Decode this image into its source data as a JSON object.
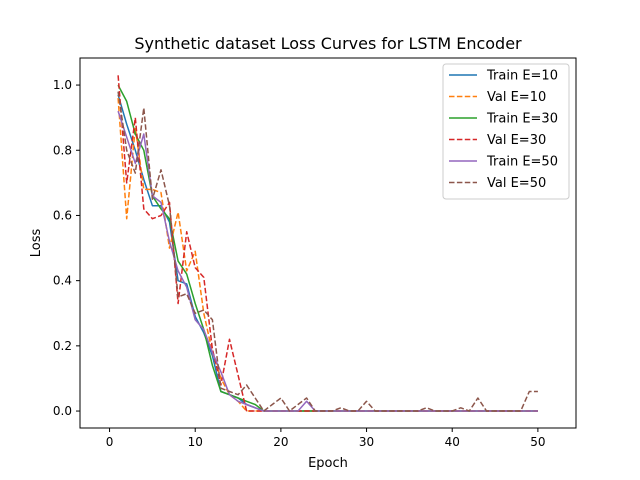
{
  "chart_data": {
    "type": "line",
    "title": "Synthetic dataset Loss Curves for LSTM Encoder",
    "xlabel": "Epoch",
    "ylabel": "Loss",
    "xlim": [
      -3.45,
      54.45
    ],
    "ylim": [
      -0.052,
      1.083
    ],
    "xticks": [
      0,
      10,
      20,
      30,
      40,
      50
    ],
    "yticks": [
      0.0,
      0.2,
      0.4,
      0.6,
      0.8,
      1.0
    ],
    "xtick_labels": [
      "0",
      "10",
      "20",
      "30",
      "40",
      "50"
    ],
    "ytick_labels": [
      "0.0",
      "0.2",
      "0.4",
      "0.6",
      "0.8",
      "1.0"
    ],
    "grid": false,
    "legend_position": "top-right",
    "series": [
      {
        "name": "Train E=10",
        "color": "#1f77b4",
        "dash": "solid",
        "x": [
          1,
          2,
          3,
          4,
          5,
          6,
          7,
          8,
          9,
          10,
          11,
          12,
          13,
          14,
          15,
          16,
          17,
          18,
          19,
          20,
          21,
          22,
          23,
          24,
          25,
          26,
          27,
          28,
          29,
          30,
          31,
          32,
          33,
          34,
          35,
          36,
          37,
          38,
          39,
          40,
          41,
          42,
          43,
          44,
          45,
          46,
          47,
          48,
          49,
          50
        ],
        "y": [
          0.97,
          0.88,
          0.8,
          0.71,
          0.63,
          0.63,
          0.58,
          0.4,
          0.39,
          0.29,
          0.24,
          0.17,
          0.06,
          0.05,
          0.04,
          0.02,
          0.01,
          0.0,
          0.0,
          0.0,
          0.0,
          0.0,
          0.0,
          0.0,
          0.0,
          0.0,
          0.0,
          0.0,
          0.0,
          0.0,
          0.0,
          0.0,
          0.0,
          0.0,
          0.0,
          0.0,
          0.0,
          0.0,
          0.0,
          0.0,
          0.0,
          0.0,
          0.0,
          0.0,
          0.0,
          0.0,
          0.0,
          0.0,
          0.0,
          0.0
        ]
      },
      {
        "name": "Val E=10",
        "color": "#ff7f0e",
        "dash": "dashed",
        "x": [
          1,
          2,
          3,
          4,
          5,
          6,
          7,
          8,
          9,
          10,
          11,
          12,
          13,
          14,
          15,
          16,
          17,
          18,
          19,
          20,
          21,
          22,
          23,
          24,
          25,
          26,
          27,
          28,
          29,
          30,
          31,
          32,
          33,
          34,
          35,
          36,
          37,
          38,
          39,
          40,
          41,
          42,
          43,
          44,
          45,
          46,
          47,
          48,
          49,
          50
        ],
        "y": [
          0.96,
          0.59,
          0.87,
          0.68,
          0.68,
          0.67,
          0.5,
          0.61,
          0.43,
          0.49,
          0.3,
          0.18,
          0.1,
          0.05,
          0.03,
          0.0,
          0.0,
          0.0,
          0.0,
          0.0,
          0.0,
          0.0,
          0.0,
          0.0,
          0.0,
          0.0,
          0.0,
          0.0,
          0.0,
          0.0,
          0.0,
          0.0,
          0.0,
          0.0,
          0.0,
          0.0,
          0.0,
          0.0,
          0.0,
          0.0,
          0.0,
          0.0,
          0.0,
          0.0,
          0.0,
          0.0,
          0.0,
          0.0,
          0.0,
          0.0
        ]
      },
      {
        "name": "Train E=30",
        "color": "#2ca02c",
        "dash": "solid",
        "x": [
          1,
          2,
          3,
          4,
          5,
          6,
          7,
          8,
          9,
          10,
          11,
          12,
          13,
          14,
          15,
          16,
          17,
          18,
          19,
          20,
          21,
          22,
          23,
          24,
          25,
          26,
          27,
          28,
          29,
          30,
          31,
          32,
          33,
          34,
          35,
          36,
          37,
          38,
          39,
          40,
          41,
          42,
          43,
          44,
          45,
          46,
          47,
          48,
          49,
          50
        ],
        "y": [
          1.0,
          0.95,
          0.85,
          0.8,
          0.66,
          0.62,
          0.59,
          0.46,
          0.42,
          0.33,
          0.25,
          0.14,
          0.06,
          0.05,
          0.04,
          0.03,
          0.02,
          0.0,
          0.0,
          0.0,
          0.0,
          0.0,
          0.0,
          0.0,
          0.0,
          0.0,
          0.0,
          0.0,
          0.0,
          0.0,
          0.0,
          0.0,
          0.0,
          0.0,
          0.0,
          0.0,
          0.0,
          0.0,
          0.0,
          0.0,
          0.0,
          0.0,
          0.0,
          0.0,
          0.0,
          0.0,
          0.0,
          0.0,
          0.0,
          0.0
        ]
      },
      {
        "name": "Val E=30",
        "color": "#d62728",
        "dash": "dashed",
        "x": [
          1,
          2,
          3,
          4,
          5,
          6,
          7,
          8,
          9,
          10,
          11,
          12,
          13,
          14,
          15,
          16,
          17,
          18,
          19,
          20,
          21,
          22,
          23,
          24,
          25,
          26,
          27,
          28,
          29,
          30,
          31,
          32,
          33,
          34,
          35,
          36,
          37,
          38,
          39,
          40,
          41,
          42,
          43,
          44,
          45,
          46,
          47,
          48,
          49,
          50
        ],
        "y": [
          1.03,
          0.7,
          0.9,
          0.62,
          0.59,
          0.6,
          0.64,
          0.33,
          0.55,
          0.44,
          0.41,
          0.19,
          0.08,
          0.22,
          0.11,
          0.0,
          0.0,
          0.0,
          0.0,
          0.0,
          0.0,
          0.0,
          0.0,
          0.0,
          0.0,
          0.0,
          0.0,
          0.0,
          0.0,
          0.0,
          0.0,
          0.0,
          0.0,
          0.0,
          0.0,
          0.0,
          0.0,
          0.0,
          0.0,
          0.0,
          0.0,
          0.0,
          0.0,
          0.0,
          0.0,
          0.0,
          0.0,
          0.0,
          0.0,
          0.0
        ]
      },
      {
        "name": "Train E=50",
        "color": "#9467bd",
        "dash": "solid",
        "x": [
          1,
          2,
          3,
          4,
          5,
          6,
          7,
          8,
          9,
          10,
          11,
          12,
          13,
          14,
          15,
          16,
          17,
          18,
          19,
          20,
          21,
          22,
          23,
          24,
          25,
          26,
          27,
          28,
          29,
          30,
          31,
          32,
          33,
          34,
          35,
          36,
          37,
          38,
          39,
          40,
          41,
          42,
          43,
          44,
          45,
          46,
          47,
          48,
          49,
          50
        ],
        "y": [
          0.92,
          0.84,
          0.76,
          0.85,
          0.66,
          0.64,
          0.52,
          0.43,
          0.38,
          0.28,
          0.25,
          0.18,
          0.12,
          0.05,
          0.03,
          0.02,
          0.01,
          0.0,
          0.0,
          0.0,
          0.0,
          0.0,
          0.03,
          0.0,
          0.0,
          0.0,
          0.0,
          0.0,
          0.0,
          0.0,
          0.0,
          0.0,
          0.0,
          0.0,
          0.0,
          0.0,
          0.0,
          0.0,
          0.0,
          0.0,
          0.0,
          0.0,
          0.0,
          0.0,
          0.0,
          0.0,
          0.0,
          0.0,
          0.0,
          0.0
        ]
      },
      {
        "name": "Val E=50",
        "color": "#8c564b",
        "dash": "dashed",
        "x": [
          1,
          2,
          3,
          4,
          5,
          6,
          7,
          8,
          9,
          10,
          11,
          12,
          13,
          14,
          15,
          16,
          17,
          18,
          19,
          20,
          21,
          22,
          23,
          24,
          25,
          26,
          27,
          28,
          29,
          30,
          31,
          32,
          33,
          34,
          35,
          36,
          37,
          38,
          39,
          40,
          41,
          42,
          43,
          44,
          45,
          46,
          47,
          48,
          49,
          50
        ],
        "y": [
          0.98,
          0.8,
          0.73,
          0.93,
          0.65,
          0.74,
          0.63,
          0.35,
          0.36,
          0.3,
          0.31,
          0.28,
          0.07,
          0.06,
          0.05,
          0.08,
          0.04,
          0.0,
          0.02,
          0.04,
          0.0,
          0.02,
          0.04,
          0.0,
          0.0,
          0.0,
          0.01,
          0.0,
          0.0,
          0.03,
          0.0,
          0.0,
          0.0,
          0.0,
          0.0,
          0.0,
          0.01,
          0.0,
          0.0,
          0.0,
          0.01,
          0.0,
          0.04,
          0.0,
          0.0,
          0.0,
          0.0,
          0.0,
          0.06,
          0.06
        ]
      }
    ]
  }
}
